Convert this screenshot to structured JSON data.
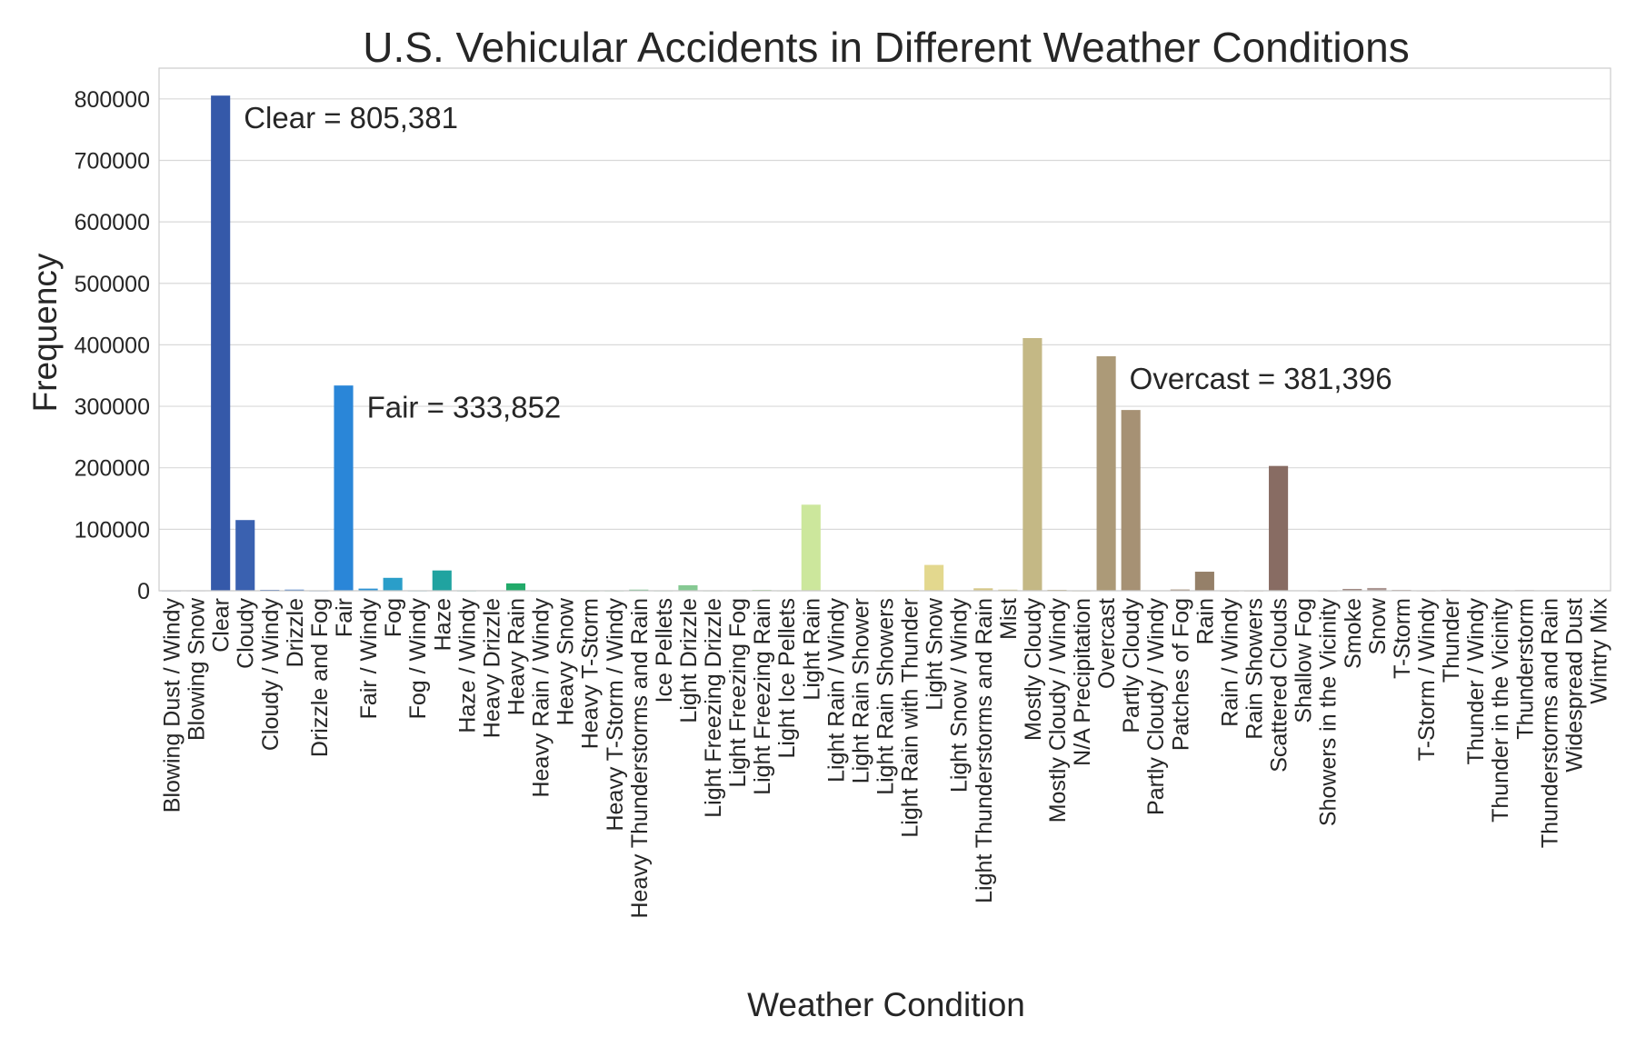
{
  "chart_data": {
    "type": "bar",
    "title": "U.S. Vehicular Accidents in Different Weather Conditions",
    "xlabel": "Weather Condition",
    "ylabel": "Frequency",
    "ylim": [
      0,
      850000
    ],
    "yticks": [
      0,
      100000,
      200000,
      300000,
      400000,
      500000,
      600000,
      700000,
      800000
    ],
    "ytick_labels": [
      "0",
      "100000",
      "200000",
      "300000",
      "400000",
      "500000",
      "600000",
      "700000",
      "800000"
    ],
    "grid": true,
    "legend": "none",
    "categories": [
      "Blowing Dust / Windy",
      "Blowing Snow",
      "Clear",
      "Cloudy",
      "Cloudy / Windy",
      "Drizzle",
      "Drizzle and Fog",
      "Fair",
      "Fair / Windy",
      "Fog",
      "Fog / Windy",
      "Haze",
      "Haze / Windy",
      "Heavy Drizzle",
      "Heavy Rain",
      "Heavy Rain / Windy",
      "Heavy Snow",
      "Heavy T-Storm",
      "Heavy T-Storm / Windy",
      "Heavy Thunderstorms and Rain",
      "Ice Pellets",
      "Light Drizzle",
      "Light Freezing Drizzle",
      "Light Freezing Fog",
      "Light Freezing Rain",
      "Light Ice Pellets",
      "Light Rain",
      "Light Rain / Windy",
      "Light Rain Shower",
      "Light Rain Showers",
      "Light Rain with Thunder",
      "Light Snow",
      "Light Snow / Windy",
      "Light Thunderstorms and Rain",
      "Mist",
      "Mostly Cloudy",
      "Mostly Cloudy / Windy",
      "N/A Precipitation",
      "Overcast",
      "Partly Cloudy",
      "Partly Cloudy / Windy",
      "Patches of Fog",
      "Rain",
      "Rain / Windy",
      "Rain Showers",
      "Scattered Clouds",
      "Shallow Fog",
      "Showers in the Vicinity",
      "Smoke",
      "Snow",
      "T-Storm",
      "T-Storm / Windy",
      "Thunder",
      "Thunder / Windy",
      "Thunder in the Vicinity",
      "Thunderstorm",
      "Thunderstorms and Rain",
      "Widespread Dust",
      "Wintry Mix"
    ],
    "values": [
      300,
      400,
      805381,
      115000,
      1500,
      1800,
      300,
      333852,
      3500,
      21000,
      300,
      33000,
      300,
      600,
      12000,
      300,
      600,
      300,
      300,
      1800,
      300,
      9000,
      300,
      300,
      1500,
      300,
      140000,
      500,
      500,
      300,
      1200,
      42000,
      500,
      4000,
      1800,
      411000,
      1500,
      300,
      381396,
      294000,
      500,
      2000,
      31000,
      300,
      300,
      203000,
      500,
      300,
      3000,
      4500,
      1500,
      300,
      1500,
      300,
      1200,
      1500,
      500,
      300,
      300
    ],
    "colors": [
      "#3d5ba8",
      "#3a5caa",
      "#3559a9",
      "#3a61b0",
      "#3064b8",
      "#2b6bc1",
      "#2876cc",
      "#2a86d8",
      "#2c93d4",
      "#2a9ec9",
      "#24a3b8",
      "#20a3a0",
      "#1da68f",
      "#1fa87e",
      "#22aa6a",
      "#34ad6d",
      "#46b173",
      "#55b579",
      "#62ba7f",
      "#6fbe86",
      "#7ac48c",
      "#86c993",
      "#92cd98",
      "#a0d29c",
      "#b0d99e",
      "#bedf9e",
      "#cce79c",
      "#d6e79a",
      "#dde496",
      "#e2e193",
      "#e4dc90",
      "#e3d88e",
      "#ddd08b",
      "#d6c889",
      "#ccc086",
      "#c4b885",
      "#bcaf80",
      "#b4a67c",
      "#ac9a78",
      "#a69174",
      "#a08a70",
      "#9a836c",
      "#958069",
      "#8f7566",
      "#8b6e64",
      "#886c63",
      "#8c7068",
      "#967c75",
      "#a18a84",
      "#ac9793",
      "#b6a3a0",
      "#bfaead",
      "#c7b8b8",
      "#cfc2c2",
      "#d6cbcb",
      "#dcd3d3",
      "#e2dada",
      "#e7e1e1",
      "#ebe6e6"
    ],
    "annotations": [
      {
        "text": "Clear = 805,381",
        "category": "Clear",
        "y": 770000
      },
      {
        "text": "Fair = 333,852",
        "category": "Fair",
        "y": 299000
      },
      {
        "text": "Overcast = 381,396",
        "category": "Overcast",
        "y": 346000
      }
    ]
  }
}
